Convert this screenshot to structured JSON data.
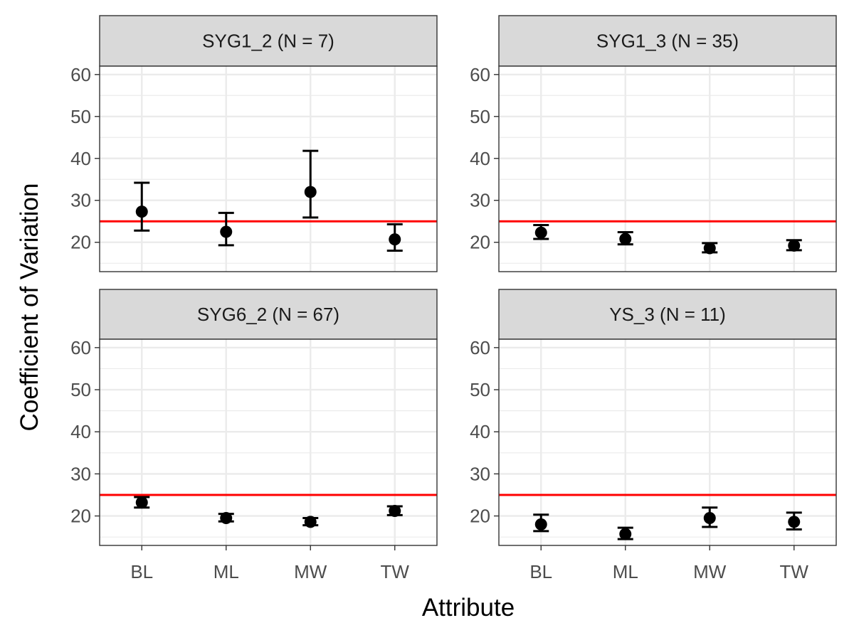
{
  "chart_data": {
    "type": "scatter",
    "subtype": "faceted point-range (mean with error bars)",
    "xlabel": "Attribute",
    "ylabel": "Coefficient of Variation",
    "categories": [
      "BL",
      "ML",
      "MW",
      "TW"
    ],
    "ylim": [
      13,
      62
    ],
    "yticks": [
      20,
      30,
      40,
      50,
      60
    ],
    "grid": true,
    "reference_line": {
      "y": 25,
      "color": "#ff0000"
    },
    "point_color": "#000000",
    "facets": [
      {
        "label": "SYG1_2 (N = 7)",
        "points": [
          {
            "x": "BL",
            "y": 27.3,
            "lower": 22.8,
            "upper": 34.2
          },
          {
            "x": "ML",
            "y": 22.5,
            "lower": 19.3,
            "upper": 27.0
          },
          {
            "x": "MW",
            "y": 32.0,
            "lower": 25.9,
            "upper": 41.8
          },
          {
            "x": "TW",
            "y": 20.7,
            "lower": 18.0,
            "upper": 24.3
          }
        ]
      },
      {
        "label": "SYG1_3 (N = 35)",
        "points": [
          {
            "x": "BL",
            "y": 22.3,
            "lower": 20.8,
            "upper": 24.1
          },
          {
            "x": "ML",
            "y": 20.8,
            "lower": 19.5,
            "upper": 22.4
          },
          {
            "x": "MW",
            "y": 18.6,
            "lower": 17.6,
            "upper": 19.8
          },
          {
            "x": "TW",
            "y": 19.2,
            "lower": 18.1,
            "upper": 20.5
          }
        ]
      },
      {
        "label": "SYG6_2 (N = 67)",
        "points": [
          {
            "x": "BL",
            "y": 23.2,
            "lower": 22.0,
            "upper": 24.5
          },
          {
            "x": "ML",
            "y": 19.5,
            "lower": 18.7,
            "upper": 20.5
          },
          {
            "x": "MW",
            "y": 18.6,
            "lower": 17.8,
            "upper": 19.5
          },
          {
            "x": "TW",
            "y": 21.2,
            "lower": 20.2,
            "upper": 22.3
          }
        ]
      },
      {
        "label": "YS_3 (N = 11)",
        "points": [
          {
            "x": "BL",
            "y": 18.0,
            "lower": 16.4,
            "upper": 20.3
          },
          {
            "x": "ML",
            "y": 15.7,
            "lower": 14.5,
            "upper": 17.2
          },
          {
            "x": "MW",
            "y": 19.5,
            "lower": 17.4,
            "upper": 22.0
          },
          {
            "x": "TW",
            "y": 18.6,
            "lower": 16.8,
            "upper": 20.8
          }
        ]
      }
    ]
  }
}
